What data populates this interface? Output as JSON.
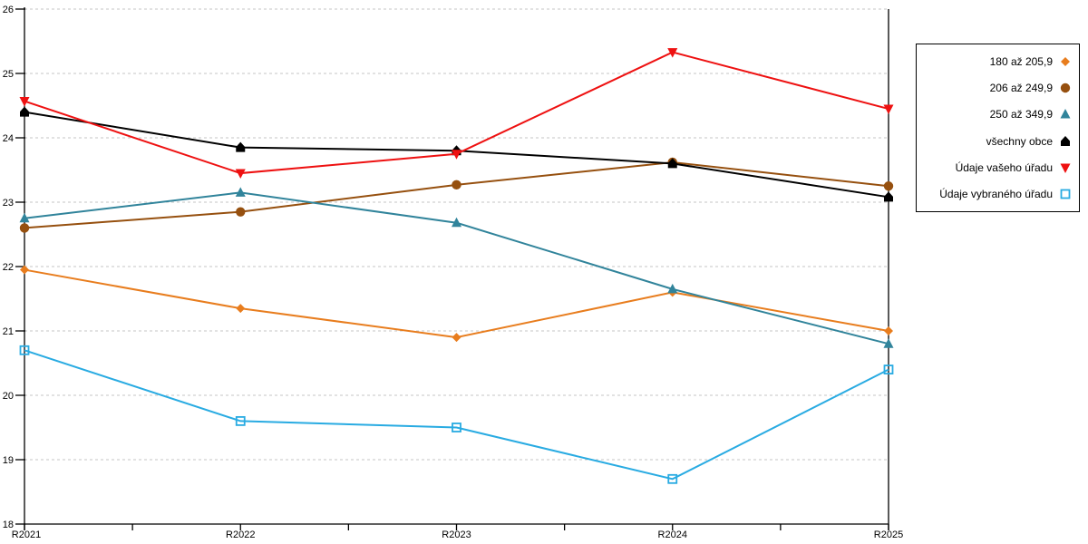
{
  "chart": {
    "background": "#FFFFFF",
    "axis_color": "#000000",
    "grid_color": "#C6C6C6",
    "tick_font_size": 11,
    "legend_font_size": 12
  },
  "chart_data": {
    "type": "line",
    "title": "",
    "xlabel": "",
    "ylabel": "",
    "categories": [
      "R2021",
      "R2022",
      "R2023",
      "R2024",
      "R2025"
    ],
    "ylim": [
      18,
      26
    ],
    "yticks": [
      18,
      19,
      20,
      21,
      22,
      23,
      24,
      25,
      26
    ],
    "grid": "horizontal-dashed",
    "legend_position": "right",
    "series": [
      {
        "name": "180 až 205,9",
        "marker": "diamond",
        "color": "#E87D1E",
        "values": [
          21.95,
          21.35,
          20.9,
          21.6,
          21.0
        ]
      },
      {
        "name": "206 až 249,9",
        "marker": "circle",
        "color": "#96500F",
        "values": [
          22.6,
          22.85,
          23.27,
          23.62,
          23.25
        ]
      },
      {
        "name": "250 až 349,9",
        "marker": "triangle-up",
        "color": "#31849B",
        "values": [
          22.75,
          23.15,
          22.68,
          21.65,
          20.8
        ]
      },
      {
        "name": "všechny obce",
        "marker": "pentagon",
        "color": "#000000",
        "values": [
          24.4,
          23.85,
          23.8,
          23.6,
          23.08
        ]
      },
      {
        "name": "Údaje vašeho úřadu",
        "marker": "triangle-down",
        "color": "#EE1111",
        "values": [
          24.57,
          23.45,
          23.75,
          25.33,
          24.45
        ]
      },
      {
        "name": "Údaje vybraného úřadu",
        "marker": "square-open",
        "color": "#29ABE2",
        "values": [
          20.7,
          19.6,
          19.5,
          18.7,
          20.4
        ]
      }
    ]
  }
}
